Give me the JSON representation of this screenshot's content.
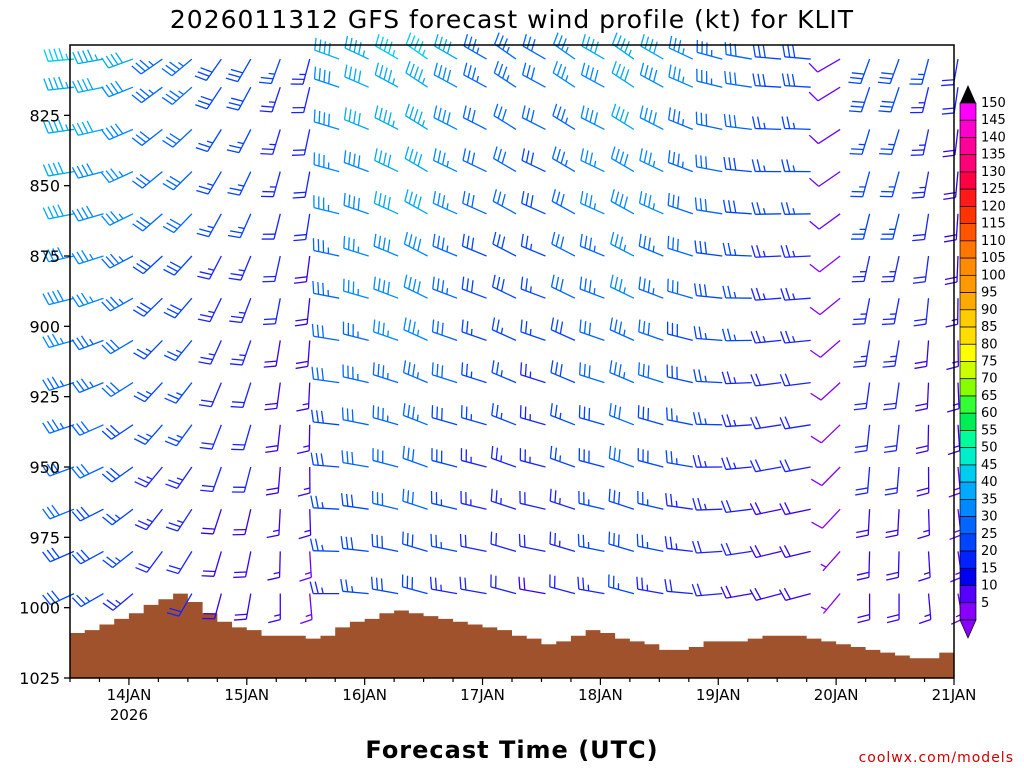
{
  "chart_data": {
    "type": "wind-barb-profile",
    "title": "2026011312 GFS forecast wind profile (kt) for KLIT",
    "xlabel": "Forecast Time (UTC)",
    "ylabel": "",
    "credit": "coolwx.com/models",
    "x_ticks": [
      {
        "label": "14JAN",
        "sublabel": "2026",
        "hour": 12
      },
      {
        "label": "15JAN",
        "sublabel": "",
        "hour": 36
      },
      {
        "label": "16JAN",
        "sublabel": "",
        "hour": 60
      },
      {
        "label": "17JAN",
        "sublabel": "",
        "hour": 84
      },
      {
        "label": "18JAN",
        "sublabel": "",
        "hour": 108
      },
      {
        "label": "19JAN",
        "sublabel": "",
        "hour": 132
      },
      {
        "label": "20JAN",
        "sublabel": "",
        "hour": 156
      },
      {
        "label": "21JAN",
        "sublabel": "",
        "hour": 180
      }
    ],
    "x_range_hours": [
      0,
      180
    ],
    "y_axis": {
      "label_levels": [
        825,
        850,
        875,
        900,
        925,
        950,
        975,
        1000,
        1025
      ],
      "top_level_hpa": 800,
      "bottom_level_hpa": 1025,
      "inverted": true
    },
    "colorbar": {
      "labels": [
        "150",
        "145",
        "140",
        "135",
        "130",
        "125",
        "120",
        "115",
        "110",
        "105",
        "100",
        "95",
        "90",
        "85",
        "80",
        "75",
        "70",
        "65",
        "60",
        "55",
        "50",
        "45",
        "40",
        "35",
        "30",
        "25",
        "20",
        "15",
        "10",
        "5"
      ],
      "colors": [
        "#ff00ff",
        "#ff00cc",
        "#ff0099",
        "#ff0077",
        "#ff0044",
        "#ff1a1a",
        "#ff3300",
        "#ff5500",
        "#ff7700",
        "#ff8c00",
        "#ff9900",
        "#ffaa00",
        "#ffcc00",
        "#ffdd00",
        "#ffff00",
        "#ccff00",
        "#88ff00",
        "#33ff33",
        "#00ee55",
        "#00ff99",
        "#00eecc",
        "#00ccee",
        "#00aaff",
        "#0088ff",
        "#0066ff",
        "#0044ff",
        "#0022ff",
        "#0000ee",
        "#5500ff",
        "#8800ff"
      ]
    },
    "terrain": {
      "color": "#a0522d",
      "surface_pressure_hpa": [
        {
          "hour": 0,
          "p": 1009
        },
        {
          "hour": 3,
          "p": 1008
        },
        {
          "hour": 6,
          "p": 1006
        },
        {
          "hour": 9,
          "p": 1004
        },
        {
          "hour": 12,
          "p": 1002
        },
        {
          "hour": 15,
          "p": 999
        },
        {
          "hour": 18,
          "p": 997
        },
        {
          "hour": 21,
          "p": 995
        },
        {
          "hour": 24,
          "p": 998
        },
        {
          "hour": 27,
          "p": 1002
        },
        {
          "hour": 30,
          "p": 1005
        },
        {
          "hour": 33,
          "p": 1007
        },
        {
          "hour": 36,
          "p": 1008
        },
        {
          "hour": 39,
          "p": 1010
        },
        {
          "hour": 42,
          "p": 1010
        },
        {
          "hour": 45,
          "p": 1010
        },
        {
          "hour": 48,
          "p": 1011
        },
        {
          "hour": 51,
          "p": 1010
        },
        {
          "hour": 54,
          "p": 1007
        },
        {
          "hour": 57,
          "p": 1005
        },
        {
          "hour": 60,
          "p": 1004
        },
        {
          "hour": 63,
          "p": 1002
        },
        {
          "hour": 66,
          "p": 1001
        },
        {
          "hour": 69,
          "p": 1002
        },
        {
          "hour": 72,
          "p": 1003
        },
        {
          "hour": 75,
          "p": 1004
        },
        {
          "hour": 78,
          "p": 1005
        },
        {
          "hour": 81,
          "p": 1006
        },
        {
          "hour": 84,
          "p": 1007
        },
        {
          "hour": 87,
          "p": 1008
        },
        {
          "hour": 90,
          "p": 1010
        },
        {
          "hour": 93,
          "p": 1011
        },
        {
          "hour": 96,
          "p": 1013
        },
        {
          "hour": 99,
          "p": 1012
        },
        {
          "hour": 102,
          "p": 1010
        },
        {
          "hour": 105,
          "p": 1008
        },
        {
          "hour": 108,
          "p": 1009
        },
        {
          "hour": 111,
          "p": 1011
        },
        {
          "hour": 114,
          "p": 1012
        },
        {
          "hour": 117,
          "p": 1013
        },
        {
          "hour": 120,
          "p": 1015
        },
        {
          "hour": 123,
          "p": 1015
        },
        {
          "hour": 126,
          "p": 1014
        },
        {
          "hour": 129,
          "p": 1012
        },
        {
          "hour": 132,
          "p": 1012
        },
        {
          "hour": 135,
          "p": 1012
        },
        {
          "hour": 138,
          "p": 1011
        },
        {
          "hour": 141,
          "p": 1010
        },
        {
          "hour": 144,
          "p": 1010
        },
        {
          "hour": 147,
          "p": 1010
        },
        {
          "hour": 150,
          "p": 1011
        },
        {
          "hour": 153,
          "p": 1012
        },
        {
          "hour": 156,
          "p": 1013
        },
        {
          "hour": 159,
          "p": 1014
        },
        {
          "hour": 162,
          "p": 1015
        },
        {
          "hour": 165,
          "p": 1016
        },
        {
          "hour": 168,
          "p": 1017
        },
        {
          "hour": 171,
          "p": 1018
        },
        {
          "hour": 174,
          "p": 1018
        },
        {
          "hour": 177,
          "p": 1016
        },
        {
          "hour": 180,
          "p": 1016
        }
      ]
    },
    "barb_levels_hpa": [
      805,
      815,
      830,
      845,
      860,
      875,
      890,
      905,
      920,
      935,
      950,
      965,
      980,
      995
    ],
    "barb_hours": [
      0,
      6,
      12,
      18,
      24,
      30,
      36,
      42,
      48,
      54,
      60,
      66,
      72,
      78,
      84,
      90,
      96,
      102,
      108,
      114,
      120,
      126,
      132,
      138,
      144,
      150,
      156,
      162,
      168,
      174,
      180
    ],
    "winds_note": "direction (deg from) and speed (kt) per time column; approximate readings",
    "winds": [
      {
        "hour": 0,
        "dir": 265,
        "spd": 40
      },
      {
        "hour": 6,
        "dir": 260,
        "spd": 38
      },
      {
        "hour": 12,
        "dir": 250,
        "spd": 35
      },
      {
        "hour": 18,
        "dir": 235,
        "spd": 30
      },
      {
        "hour": 24,
        "dir": 230,
        "spd": 30
      },
      {
        "hour": 30,
        "dir": 215,
        "spd": 25
      },
      {
        "hour": 36,
        "dir": 210,
        "spd": 25
      },
      {
        "hour": 42,
        "dir": 200,
        "spd": 22
      },
      {
        "hour": 48,
        "dir": 195,
        "spd": 20
      },
      {
        "hour": 54,
        "dir": 290,
        "spd": 35
      },
      {
        "hour": 60,
        "dir": 295,
        "spd": 38
      },
      {
        "hour": 66,
        "dir": 300,
        "spd": 40
      },
      {
        "hour": 72,
        "dir": 305,
        "spd": 40
      },
      {
        "hour": 78,
        "dir": 300,
        "spd": 35
      },
      {
        "hour": 84,
        "dir": 300,
        "spd": 30
      },
      {
        "hour": 90,
        "dir": 305,
        "spd": 30
      },
      {
        "hour": 96,
        "dir": 300,
        "spd": 28
      },
      {
        "hour": 102,
        "dir": 305,
        "spd": 32
      },
      {
        "hour": 108,
        "dir": 300,
        "spd": 35
      },
      {
        "hour": 114,
        "dir": 305,
        "spd": 38
      },
      {
        "hour": 120,
        "dir": 300,
        "spd": 35
      },
      {
        "hour": 126,
        "dir": 295,
        "spd": 32
      },
      {
        "hour": 132,
        "dir": 285,
        "spd": 30
      },
      {
        "hour": 138,
        "dir": 280,
        "spd": 28
      },
      {
        "hour": 144,
        "dir": 275,
        "spd": 25
      },
      {
        "hour": 150,
        "dir": 275,
        "spd": 25
      },
      {
        "hour": 156,
        "dir": 240,
        "spd": 10
      },
      {
        "hour": 162,
        "dir": 200,
        "spd": 25
      },
      {
        "hour": 168,
        "dir": 200,
        "spd": 25
      },
      {
        "hour": 174,
        "dir": 195,
        "spd": 22
      },
      {
        "hour": 180,
        "dir": 190,
        "spd": 18
      }
    ]
  }
}
